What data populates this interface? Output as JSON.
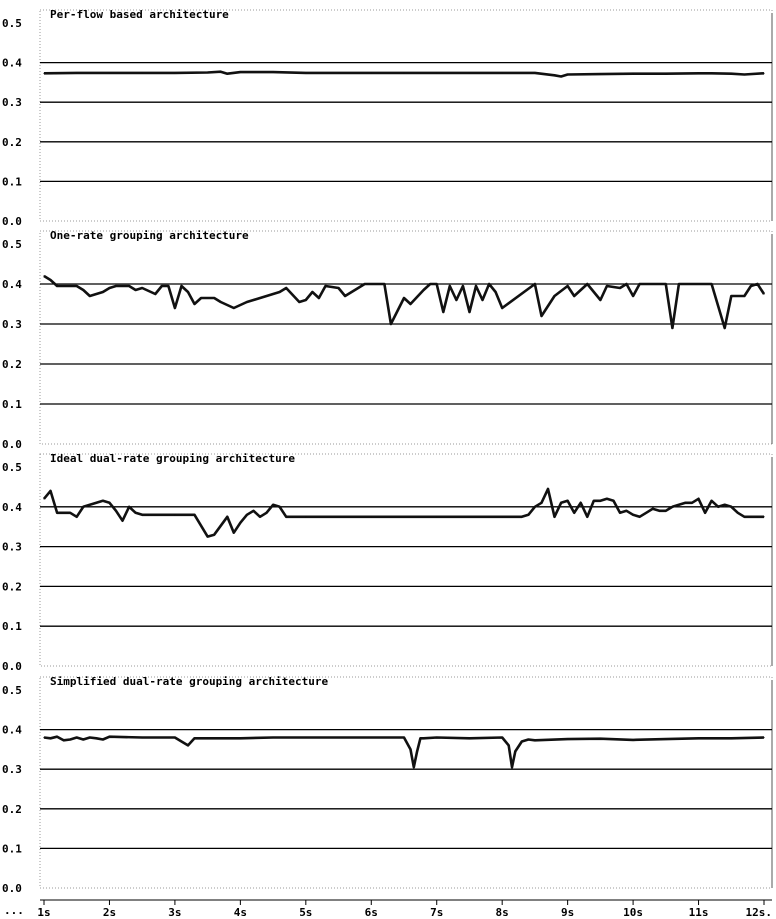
{
  "chart_data": [
    {
      "type": "line",
      "title": "Per-flow based architecture",
      "ylim": [
        0,
        0.5
      ],
      "yticks": [
        "0.0",
        "0.1",
        "0.2",
        "0.3",
        "0.4",
        "0.5"
      ],
      "grid": true,
      "xlim": [
        1,
        12
      ],
      "series": [
        {
          "x": [
            1.0,
            1.5,
            2.0,
            2.5,
            3.0,
            3.5,
            3.7,
            3.8,
            4.0,
            4.5,
            5.0,
            5.5,
            6.0,
            6.5,
            7.0,
            7.5,
            8.0,
            8.5,
            8.8,
            8.9,
            9.0,
            9.5,
            10.0,
            10.5,
            11.0,
            11.2,
            11.5,
            11.7,
            12.0
          ],
          "y": [
            0.373,
            0.374,
            0.374,
            0.374,
            0.374,
            0.375,
            0.377,
            0.372,
            0.376,
            0.376,
            0.374,
            0.374,
            0.374,
            0.374,
            0.374,
            0.374,
            0.374,
            0.374,
            0.368,
            0.365,
            0.37,
            0.371,
            0.372,
            0.372,
            0.373,
            0.373,
            0.372,
            0.37,
            0.373
          ]
        }
      ]
    },
    {
      "type": "line",
      "title": "One-rate grouping architecture",
      "ylim": [
        0,
        0.5
      ],
      "yticks": [
        "0.0",
        "0.1",
        "0.2",
        "0.3",
        "0.4",
        "0.5"
      ],
      "grid": true,
      "xlim": [
        1,
        12
      ],
      "series": [
        {
          "x": [
            1.0,
            1.1,
            1.2,
            1.5,
            1.6,
            1.7,
            1.9,
            2.0,
            2.1,
            2.2,
            2.3,
            2.4,
            2.5,
            2.7,
            2.8,
            2.9,
            3.0,
            3.1,
            3.2,
            3.3,
            3.4,
            3.6,
            3.7,
            3.9,
            4.1,
            4.2,
            4.5,
            4.6,
            4.7,
            4.9,
            5.0,
            5.1,
            5.2,
            5.3,
            5.5,
            5.6,
            5.9,
            6.2,
            6.3,
            6.5,
            6.6,
            6.8,
            6.9,
            7.0,
            7.1,
            7.2,
            7.3,
            7.4,
            7.5,
            7.6,
            7.7,
            7.8,
            7.9,
            8.0,
            8.5,
            8.6,
            8.8,
            9.0,
            9.1,
            9.3,
            9.5,
            9.6,
            9.8,
            9.9,
            10.0,
            10.1,
            10.5,
            10.6,
            10.7,
            11.2,
            11.4,
            11.5,
            11.7,
            11.8,
            11.9,
            12.0
          ],
          "y": [
            0.42,
            0.41,
            0.395,
            0.395,
            0.385,
            0.37,
            0.38,
            0.39,
            0.395,
            0.395,
            0.395,
            0.385,
            0.39,
            0.375,
            0.395,
            0.395,
            0.34,
            0.395,
            0.38,
            0.35,
            0.365,
            0.365,
            0.355,
            0.34,
            0.355,
            0.36,
            0.375,
            0.38,
            0.39,
            0.355,
            0.36,
            0.38,
            0.365,
            0.395,
            0.39,
            0.37,
            0.4,
            0.4,
            0.3,
            0.365,
            0.35,
            0.385,
            0.4,
            0.4,
            0.33,
            0.395,
            0.36,
            0.395,
            0.33,
            0.395,
            0.36,
            0.4,
            0.38,
            0.34,
            0.4,
            0.32,
            0.37,
            0.395,
            0.37,
            0.4,
            0.36,
            0.395,
            0.39,
            0.4,
            0.37,
            0.4,
            0.4,
            0.29,
            0.4,
            0.4,
            0.29,
            0.37,
            0.37,
            0.395,
            0.4,
            0.375
          ]
        }
      ]
    },
    {
      "type": "line",
      "title": "Ideal dual-rate grouping architecture",
      "ylim": [
        0,
        0.5
      ],
      "yticks": [
        "0.0",
        "0.1",
        "0.2",
        "0.3",
        "0.4",
        "0.5"
      ],
      "grid": true,
      "xlim": [
        1,
        12
      ],
      "series": [
        {
          "x": [
            1.0,
            1.1,
            1.2,
            1.4,
            1.5,
            1.6,
            1.8,
            1.9,
            2.0,
            2.1,
            2.2,
            2.3,
            2.4,
            2.5,
            2.6,
            3.0,
            3.3,
            3.5,
            3.6,
            3.8,
            3.9,
            4.0,
            4.1,
            4.2,
            4.3,
            4.4,
            4.5,
            4.6,
            4.7,
            4.8,
            5.0,
            6.0,
            7.0,
            8.0,
            8.3,
            8.4,
            8.5,
            8.6,
            8.7,
            8.8,
            8.9,
            9.0,
            9.1,
            9.2,
            9.3,
            9.4,
            9.5,
            9.6,
            9.7,
            9.8,
            9.9,
            10.0,
            10.1,
            10.2,
            10.3,
            10.4,
            10.5,
            10.6,
            10.7,
            10.8,
            10.9,
            11.0,
            11.1,
            11.2,
            11.3,
            11.4,
            11.5,
            11.6,
            11.7,
            11.8,
            11.9,
            12.0
          ],
          "y": [
            0.42,
            0.44,
            0.385,
            0.385,
            0.375,
            0.4,
            0.41,
            0.415,
            0.41,
            0.39,
            0.365,
            0.4,
            0.385,
            0.38,
            0.38,
            0.38,
            0.38,
            0.325,
            0.33,
            0.375,
            0.335,
            0.36,
            0.38,
            0.39,
            0.375,
            0.385,
            0.405,
            0.4,
            0.375,
            0.375,
            0.375,
            0.375,
            0.375,
            0.375,
            0.375,
            0.38,
            0.4,
            0.41,
            0.445,
            0.375,
            0.41,
            0.415,
            0.385,
            0.41,
            0.375,
            0.415,
            0.415,
            0.42,
            0.415,
            0.385,
            0.39,
            0.38,
            0.375,
            0.385,
            0.395,
            0.39,
            0.39,
            0.4,
            0.405,
            0.41,
            0.41,
            0.42,
            0.385,
            0.415,
            0.4,
            0.405,
            0.4,
            0.385,
            0.375,
            0.375,
            0.375,
            0.375
          ]
        }
      ]
    },
    {
      "type": "line",
      "title": "Simplified dual-rate grouping architecture",
      "ylim": [
        0,
        0.5
      ],
      "yticks": [
        "0.0",
        "0.1",
        "0.2",
        "0.3",
        "0.4",
        "0.5"
      ],
      "grid": true,
      "xlim": [
        1,
        12
      ],
      "series": [
        {
          "x": [
            1.0,
            1.1,
            1.2,
            1.3,
            1.4,
            1.5,
            1.6,
            1.7,
            1.8,
            1.9,
            2.0,
            2.5,
            3.0,
            3.1,
            3.2,
            3.3,
            3.5,
            4.0,
            4.5,
            5.0,
            5.5,
            6.0,
            6.5,
            6.6,
            6.65,
            6.7,
            6.75,
            6.8,
            7.0,
            7.5,
            8.0,
            8.1,
            8.15,
            8.2,
            8.3,
            8.4,
            8.5,
            9.0,
            9.5,
            10.0,
            10.5,
            11.0,
            11.5,
            12.0
          ],
          "y": [
            0.38,
            0.378,
            0.382,
            0.373,
            0.375,
            0.38,
            0.375,
            0.38,
            0.378,
            0.375,
            0.382,
            0.38,
            0.38,
            0.37,
            0.36,
            0.378,
            0.378,
            0.378,
            0.38,
            0.38,
            0.38,
            0.38,
            0.38,
            0.35,
            0.305,
            0.345,
            0.378,
            0.378,
            0.38,
            0.378,
            0.38,
            0.36,
            0.305,
            0.345,
            0.37,
            0.375,
            0.373,
            0.376,
            0.377,
            0.374,
            0.376,
            0.378,
            0.378,
            0.38
          ]
        }
      ]
    }
  ],
  "x_axis": {
    "ticks": [
      "1s",
      "2s",
      "3s",
      "4s",
      "5s",
      "6s",
      "7s",
      "8s",
      "9s",
      "10s",
      "11s",
      "12s."
    ],
    "leading_label": "..."
  },
  "colors": {
    "line": "#111111",
    "grid": "#000000",
    "frame": "#999999"
  }
}
